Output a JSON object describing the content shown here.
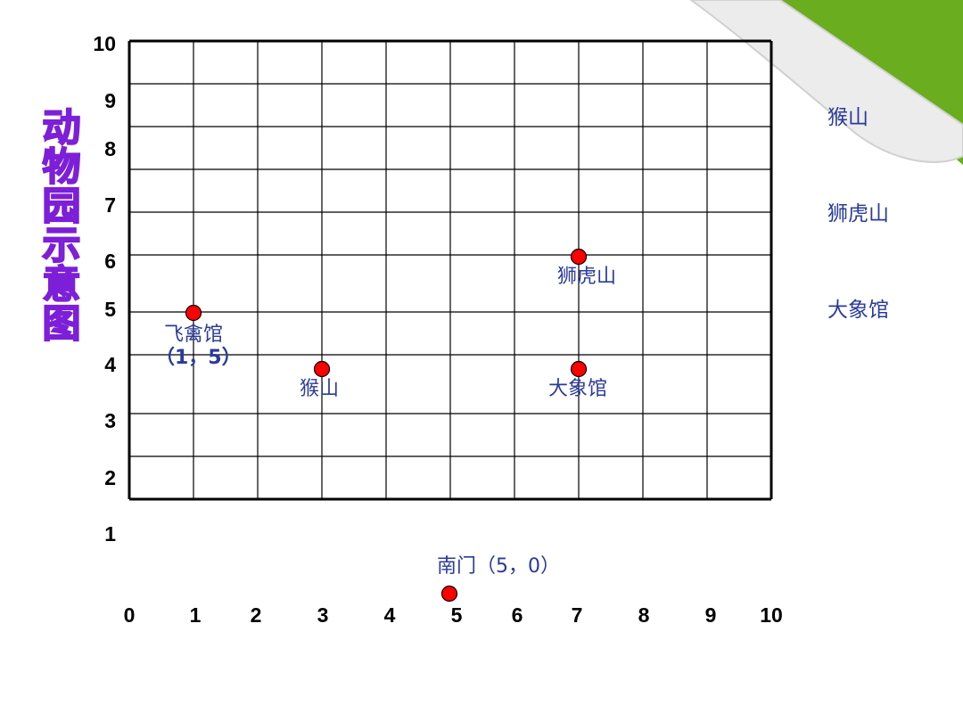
{
  "title_chars": [
    "动",
    "物",
    "园",
    "示",
    "意",
    "图"
  ],
  "y_ticks": [
    "10",
    "9",
    "8",
    "7",
    "6",
    "5",
    "4",
    "3",
    "2",
    "1"
  ],
  "x_ticks": [
    "0",
    "1",
    "2",
    "3",
    "4",
    "5",
    "6",
    "7",
    "8",
    "9",
    "10"
  ],
  "points": [
    {
      "name": "飞禽馆",
      "coord_text": "（1，5）",
      "x": 1,
      "y": 5
    },
    {
      "name": "猴山",
      "coord_text": "",
      "x": 3,
      "y": 4
    },
    {
      "name": "狮虎山",
      "coord_text": "",
      "x": 7,
      "y": 6
    },
    {
      "name": "大象馆",
      "coord_text": "",
      "x": 7,
      "y": 4
    },
    {
      "name": "南门（5，0）",
      "coord_text": "",
      "x": 5,
      "y": 0
    }
  ],
  "right_list": [
    "猴山",
    "狮虎山",
    "大象馆"
  ],
  "colors": {
    "point": "#ff0000",
    "label": "#2b3b9a",
    "title": "#cc88ff",
    "title_outline": "#7d1fd8",
    "corner_green": "#6aad1f"
  }
}
